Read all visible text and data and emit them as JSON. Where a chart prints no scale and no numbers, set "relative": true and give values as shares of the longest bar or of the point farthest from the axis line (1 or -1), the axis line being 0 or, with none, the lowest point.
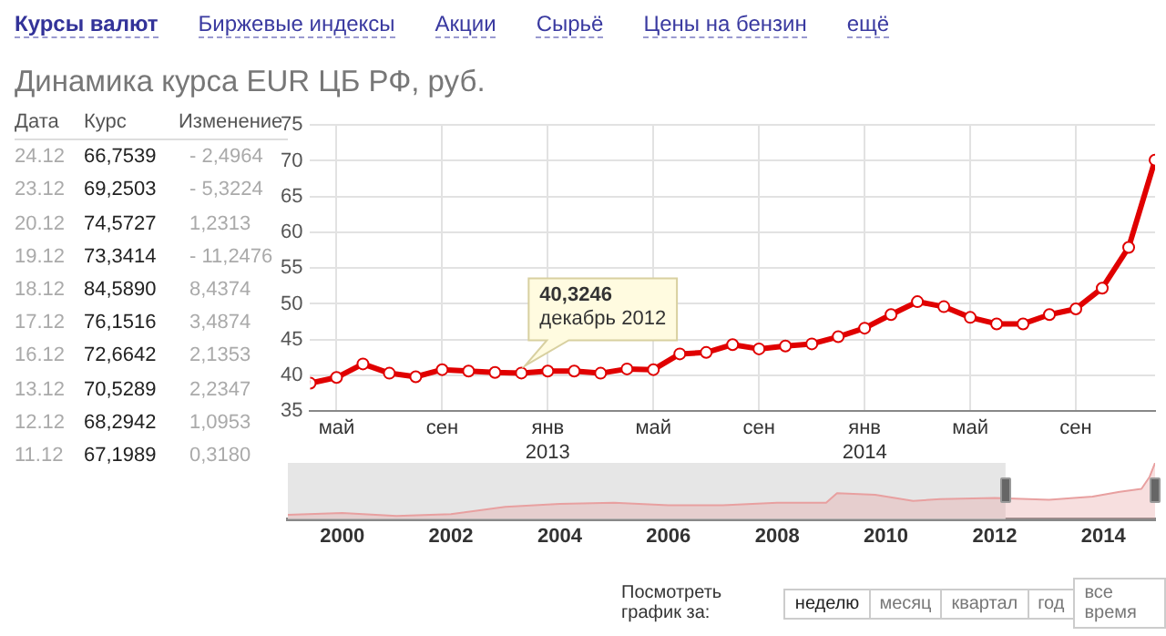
{
  "chart_data": [
    {
      "type": "other",
      "annotations": [
        "Курсы валют",
        "Биржевые индексы",
        "Акции",
        "Сырьё",
        "Цены на бензин",
        "ещё"
      ]
    },
    {
      "type": "other",
      "annotations": [
        "Дата",
        "Курс",
        "Изменение",
        "24.12",
        "66,7539",
        "- 2,4964",
        "23.12",
        "69,2503",
        "- 5,3224",
        "20.12",
        "74,5727",
        "1,2313",
        "19.12",
        "73,3414",
        "- 11,2476",
        "18.12",
        "84,5890",
        "8,4374",
        "17.12",
        "76,1516",
        "3,4874",
        "16.12",
        "72,6642",
        "2,1353",
        "13.12",
        "70,5289",
        "2,2347",
        "12.12",
        "68,2942",
        "1,0953",
        "11.12",
        "67,1989",
        "0,3180"
      ]
    },
    {
      "type": "line",
      "title": "Динамика курса EUR ЦБ РФ, руб.",
      "x": [
        "2012-04",
        "2012-05",
        "2012-06",
        "2012-07",
        "2012-08",
        "2012-09",
        "2012-10",
        "2012-11",
        "2012-12",
        "2013-01",
        "2013-02",
        "2013-03",
        "2013-04",
        "2013-05",
        "2013-06",
        "2013-07",
        "2013-08",
        "2013-09",
        "2013-10",
        "2013-11",
        "2013-12",
        "2014-01",
        "2014-02",
        "2014-03",
        "2014-04",
        "2014-05",
        "2014-06",
        "2014-07",
        "2014-08",
        "2014-09",
        "2014-10",
        "2014-11",
        "2014-12"
      ],
      "series": [
        {
          "color": "#e00000",
          "values": [
            38.9,
            39.7,
            41.6,
            40.3,
            39.8,
            40.8,
            40.6,
            40.4,
            40.3246,
            40.6,
            40.6,
            40.3,
            40.9,
            40.8,
            43.0,
            43.2,
            44.3,
            43.7,
            44.1,
            44.4,
            45.4,
            46.6,
            48.5,
            50.3,
            49.6,
            48.1,
            47.2,
            47.2,
            48.5,
            49.3,
            52.2,
            57.9,
            70.1
          ]
        }
      ],
      "xlim": [
        "2012-04",
        "2014-12"
      ],
      "xticks": [
        {
          "value": "2012-05",
          "label": "май"
        },
        {
          "value": "2012-09",
          "label": "сен"
        },
        {
          "value": "2013-01",
          "label": "янв\n2013"
        },
        {
          "value": "2013-05",
          "label": "май"
        },
        {
          "value": "2013-09",
          "label": "сен"
        },
        {
          "value": "2014-01",
          "label": "янв\n2014"
        },
        {
          "value": "2014-05",
          "label": "май"
        },
        {
          "value": "2014-09",
          "label": "сен"
        }
      ],
      "ylim": [
        35,
        75
      ],
      "yticks": [
        35,
        40,
        45,
        50,
        55,
        60,
        65,
        70,
        75
      ],
      "grid": true,
      "legend": false,
      "marker": "circle",
      "line_style": "solid",
      "annotations": [
        {
          "text": "40,3246\nдекабрь 2012",
          "x": "2012-12",
          "y": 40.3246
        }
      ]
    },
    {
      "type": "area",
      "relative": true,
      "x": [
        1999.0,
        2000,
        2001,
        2002,
        2003,
        2004,
        2005,
        2006,
        2007,
        2008,
        2008.9,
        2009.1,
        2009.8,
        2010.5,
        2011,
        2012,
        2013,
        2013.8,
        2014.3,
        2014.7,
        2014.85,
        2014.95
      ],
      "series": [
        {
          "color": "#e8a0a0",
          "values": [
            0.075,
            0.108,
            0.054,
            0.086,
            0.215,
            0.269,
            0.29,
            0.247,
            0.247,
            0.29,
            0.29,
            0.462,
            0.43,
            0.323,
            0.355,
            0.376,
            0.344,
            0.398,
            0.484,
            0.538,
            0.753,
            1
          ]
        }
      ],
      "xlim": [
        1999.0,
        2014.95
      ],
      "xticks": [
        2000,
        2002,
        2004,
        2006,
        2008,
        2010,
        2012,
        2014
      ],
      "bands": [
        {
          "axis": "x",
          "from": 1999.0,
          "to": 2012.2,
          "color": "#e6e6e6"
        }
      ]
    },
    {
      "type": "other",
      "annotations": [
        "Посмотреть график за:",
        "неделю",
        "месяц",
        "квартал",
        "год",
        "все время"
      ]
    }
  ]
}
